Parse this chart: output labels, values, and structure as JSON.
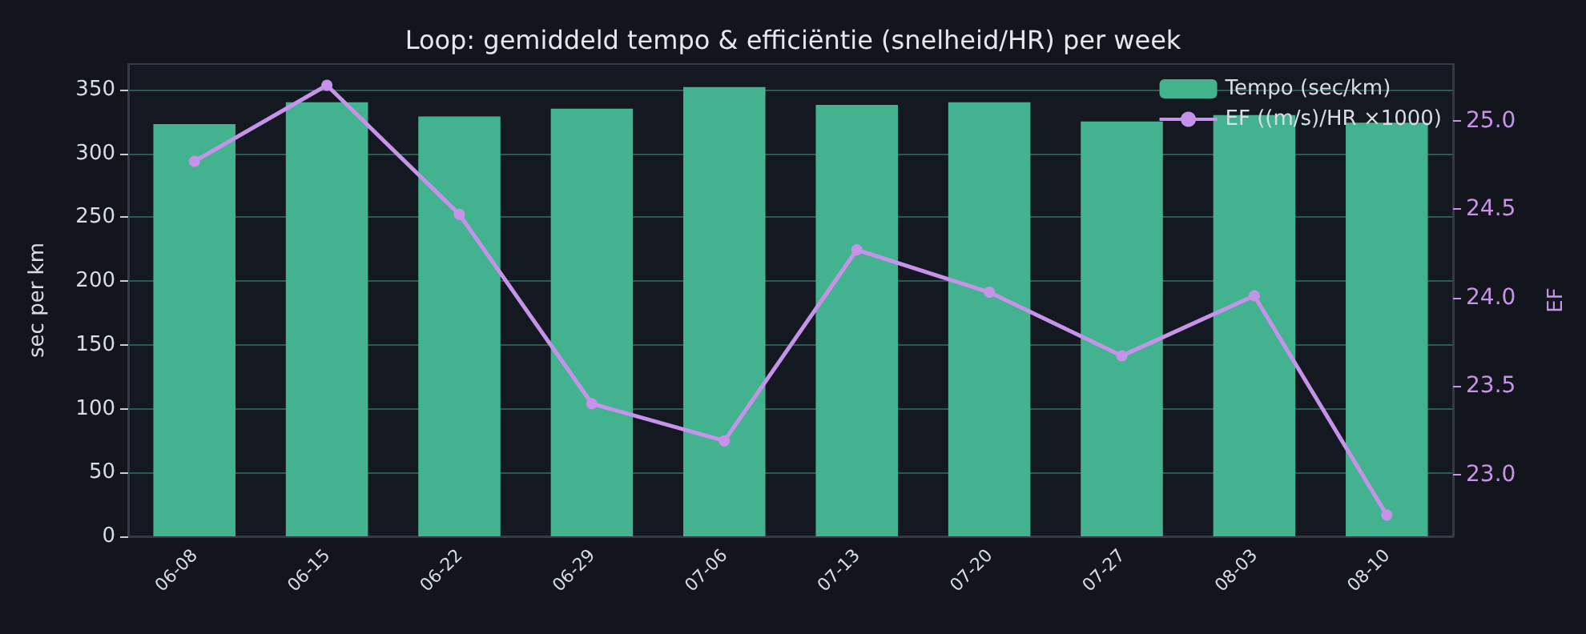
{
  "chart_data": {
    "type": "bar",
    "title": "Loop: gemiddeld tempo & efficiëntie (snelheid/HR) per week",
    "categories": [
      "06-08",
      "06-15",
      "06-22",
      "06-29",
      "07-06",
      "07-13",
      "07-20",
      "07-27",
      "08-03",
      "08-10"
    ],
    "series": [
      {
        "name": "Tempo (sec/km)",
        "color": "#43b38f",
        "values": [
          323,
          340,
          329,
          335,
          352,
          338,
          340,
          325,
          330,
          324
        ]
      },
      {
        "name": "EF ((m/s)/HR ×1000)",
        "type": "line",
        "axis": "y2",
        "color": "#c792ea",
        "values": [
          24.77,
          25.2,
          24.47,
          23.4,
          23.19,
          24.27,
          24.03,
          23.67,
          24.01,
          22.77
        ]
      }
    ],
    "ylabel": "sec per km",
    "y2label": "EF",
    "ylim": [
      0,
      370
    ],
    "yticks": [
      0,
      50,
      100,
      150,
      200,
      250,
      300,
      350
    ],
    "y2lim": [
      22.65,
      25.32
    ],
    "y2ticks": [
      {
        "value": 23,
        "label": "23.0"
      },
      23.5,
      {
        "value": 24,
        "label": "24.0"
      },
      24.5,
      {
        "value": 25,
        "label": "25.0"
      }
    ],
    "grid": "y",
    "legend": "top right",
    "marker": "circle"
  }
}
